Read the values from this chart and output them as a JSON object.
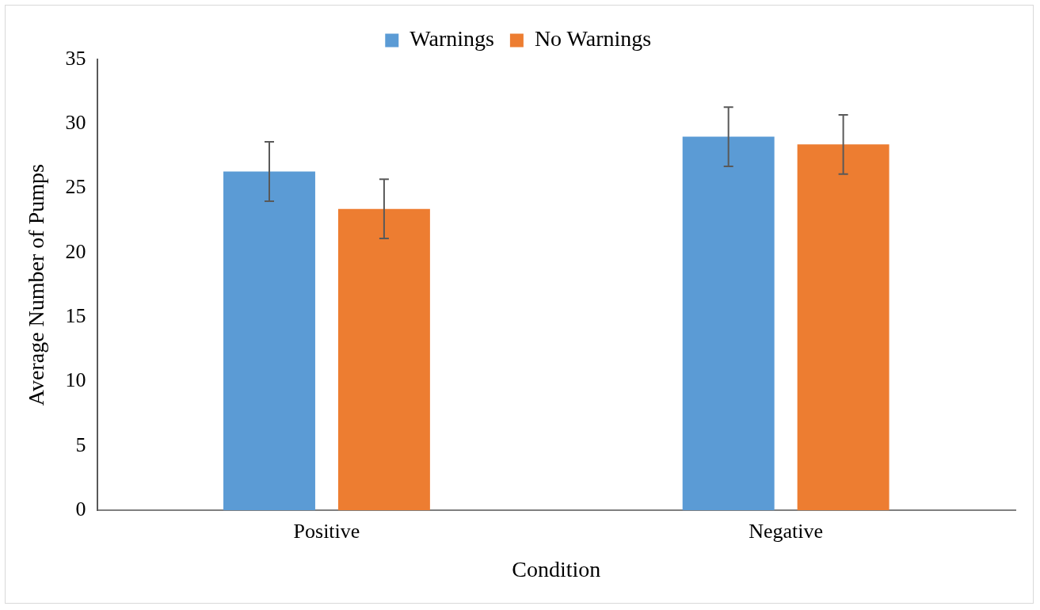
{
  "chart_data": {
    "type": "bar",
    "xlabel": "Condition",
    "ylabel": "Average Number of Pumps",
    "categories": [
      "Positive",
      "Negative"
    ],
    "series": [
      {
        "name": "Warnings",
        "color": "#5b9bd5",
        "values": [
          26.3,
          29.0
        ],
        "errors": [
          2.3,
          2.3
        ]
      },
      {
        "name": "No Warnings",
        "color": "#ed7d31",
        "values": [
          23.4,
          28.4
        ],
        "errors": [
          2.3,
          2.3
        ]
      }
    ],
    "ylim": [
      0,
      35
    ],
    "yticks": [
      0,
      5,
      10,
      15,
      20,
      25,
      30,
      35
    ],
    "grid": false,
    "legend": "top"
  }
}
